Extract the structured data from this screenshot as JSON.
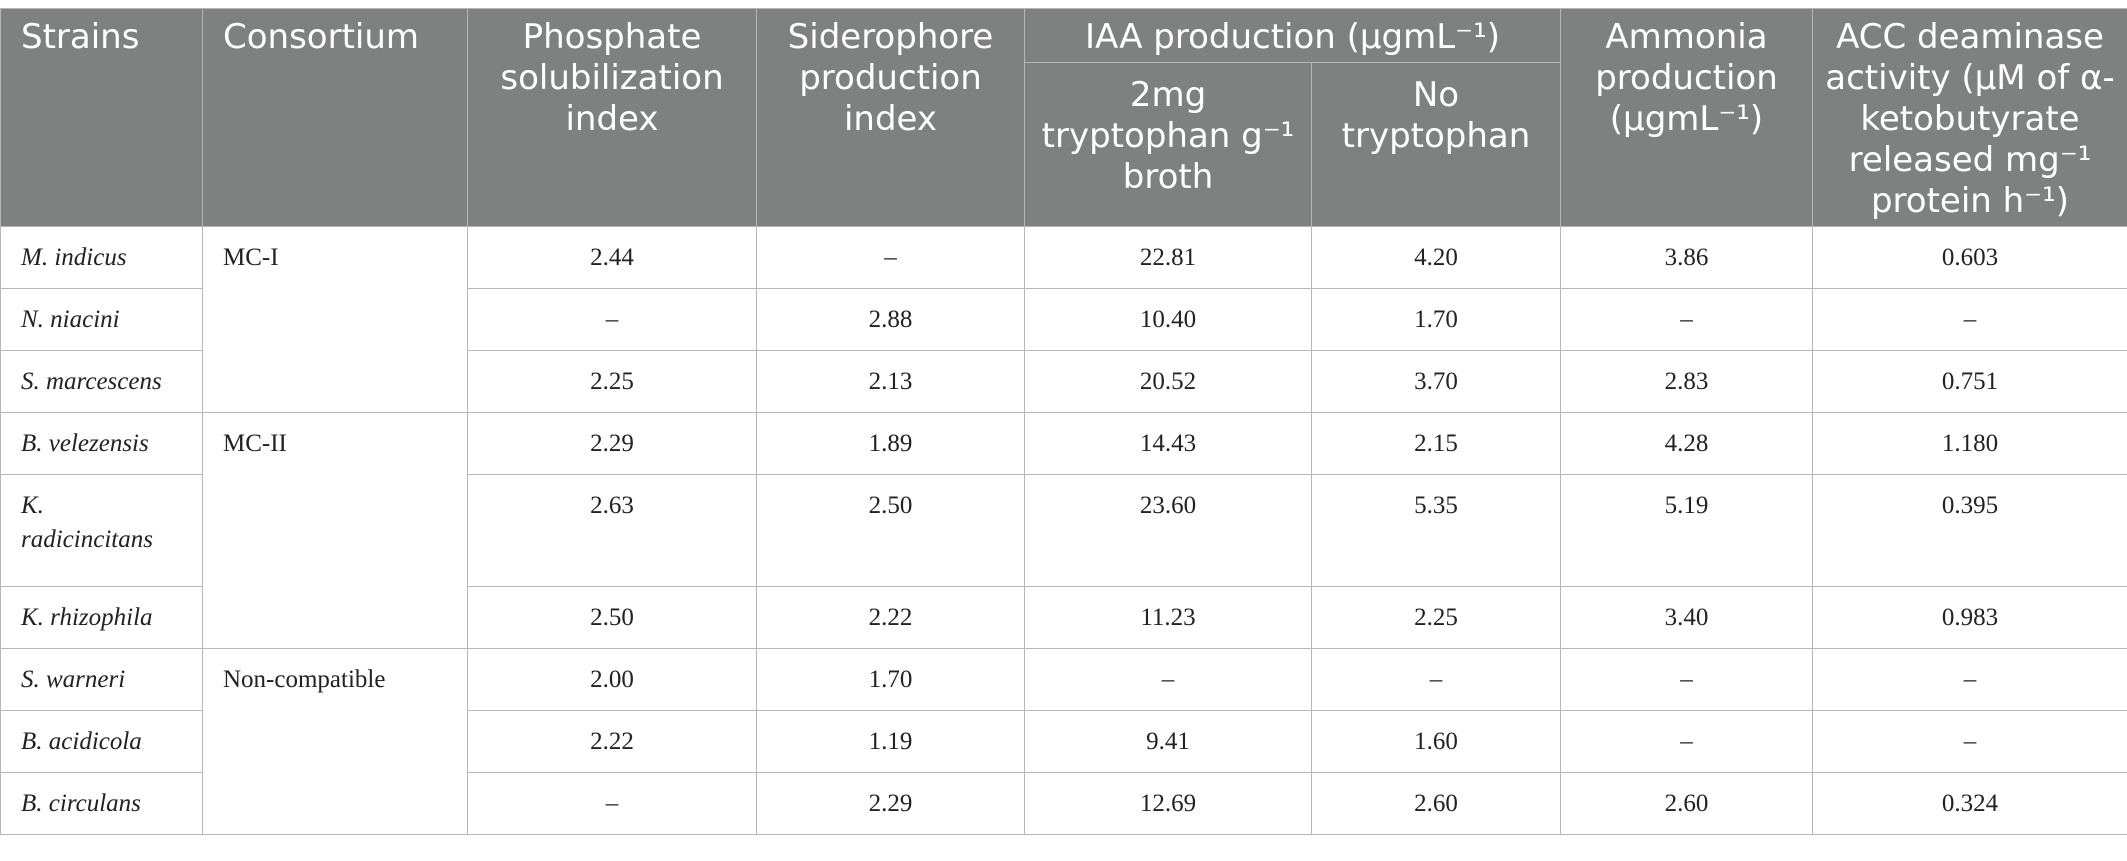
{
  "table": {
    "headers": {
      "strains": "Strains",
      "consortium": "Consortium",
      "phosphate": "Phosphate solubilization index",
      "siderophore": "Siderophore production index",
      "iaa": "IAA production (µgmL⁻¹)",
      "iaa_trp": "2mg tryptophan g⁻¹ broth",
      "iaa_notrp": "No tryptophan",
      "ammonia": "Ammonia production (µgmL⁻¹)",
      "acc": "ACC deaminase activity (µM of α-ketobutyrate released mg⁻¹ protein h⁻¹)"
    },
    "groups": [
      {
        "consortium": "MC-I",
        "rows": [
          {
            "strain": "M. indicus",
            "phosphate": "2.44",
            "siderophore": "–",
            "iaa_trp": "22.81",
            "iaa_notrp": "4.20",
            "ammonia": "3.86",
            "acc": "0.603"
          },
          {
            "strain": "N. niacini",
            "phosphate": "–",
            "siderophore": "2.88",
            "iaa_trp": "10.40",
            "iaa_notrp": "1.70",
            "ammonia": "–",
            "acc": "–"
          },
          {
            "strain": "S. marcescens",
            "phosphate": "2.25",
            "siderophore": "2.13",
            "iaa_trp": "20.52",
            "iaa_notrp": "3.70",
            "ammonia": "2.83",
            "acc": "0.751"
          }
        ]
      },
      {
        "consortium": "MC-II",
        "rows": [
          {
            "strain": "B. velezensis",
            "phosphate": "2.29",
            "siderophore": "1.89",
            "iaa_trp": "14.43",
            "iaa_notrp": "2.15",
            "ammonia": "4.28",
            "acc": "1.180"
          },
          {
            "strain": "K. radicincitans",
            "phosphate": "2.63",
            "siderophore": "2.50",
            "iaa_trp": "23.60",
            "iaa_notrp": "5.35",
            "ammonia": "5.19",
            "acc": "0.395"
          },
          {
            "strain": "K. rhizophila",
            "phosphate": "2.50",
            "siderophore": "2.22",
            "iaa_trp": "11.23",
            "iaa_notrp": "2.25",
            "ammonia": "3.40",
            "acc": "0.983"
          }
        ]
      },
      {
        "consortium": "Non-compatible",
        "rows": [
          {
            "strain": "S. warneri",
            "phosphate": "2.00",
            "siderophore": "1.70",
            "iaa_trp": "–",
            "iaa_notrp": "–",
            "ammonia": "–",
            "acc": "–"
          },
          {
            "strain": "B. acidicola",
            "phosphate": "2.22",
            "siderophore": "1.19",
            "iaa_trp": "9.41",
            "iaa_notrp": "1.60",
            "ammonia": "–",
            "acc": "–"
          },
          {
            "strain": "B. circulans",
            "phosphate": "–",
            "siderophore": "2.29",
            "iaa_trp": "12.69",
            "iaa_notrp": "2.60",
            "ammonia": "2.60",
            "acc": "0.324"
          }
        ]
      }
    ]
  }
}
